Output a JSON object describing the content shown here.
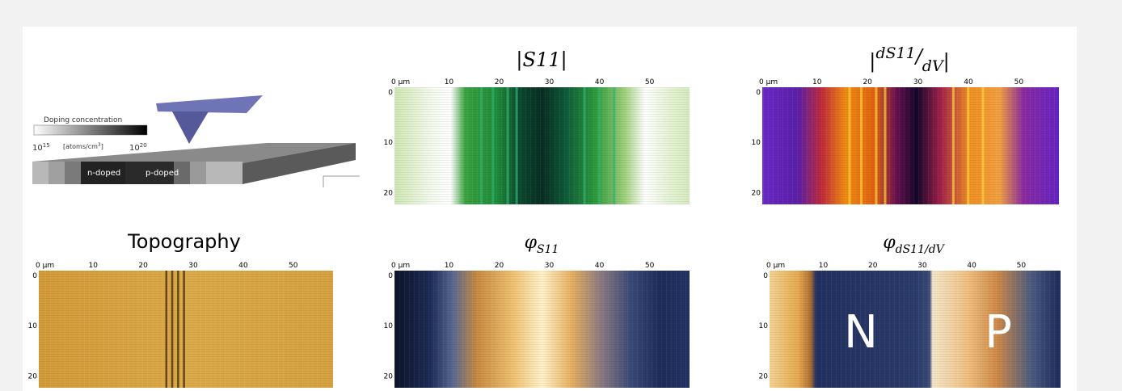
{
  "illustration": {
    "legend_title": "Doping concentration",
    "legend_min_base": "10",
    "legend_min_exp": "15",
    "legend_unit": "[atoms/cm",
    "legend_unit_exp": "3",
    "legend_unit_end": "]",
    "legend_max_base": "10",
    "legend_max_exp": "20",
    "n_label": "n-doped",
    "p_label": "p-doped"
  },
  "panels": [
    {
      "title": "|S11|"
    },
    {
      "title_left": "|",
      "title_numerator": "dS11",
      "title_slash": "/",
      "title_denominator": "dV",
      "title_right": "|"
    },
    {
      "title": "Topography"
    },
    {
      "title_symbol": "φ",
      "title_subscript": "S11"
    },
    {
      "title_symbol": "φ",
      "title_subscript": "dS11/dV"
    }
  ],
  "x_ticks": [
    "0 µm",
    "10",
    "20",
    "30",
    "40",
    "50"
  ],
  "y_ticks": [
    "0",
    "10",
    "20"
  ],
  "overlay": {
    "n": "N",
    "p": "P"
  }
}
